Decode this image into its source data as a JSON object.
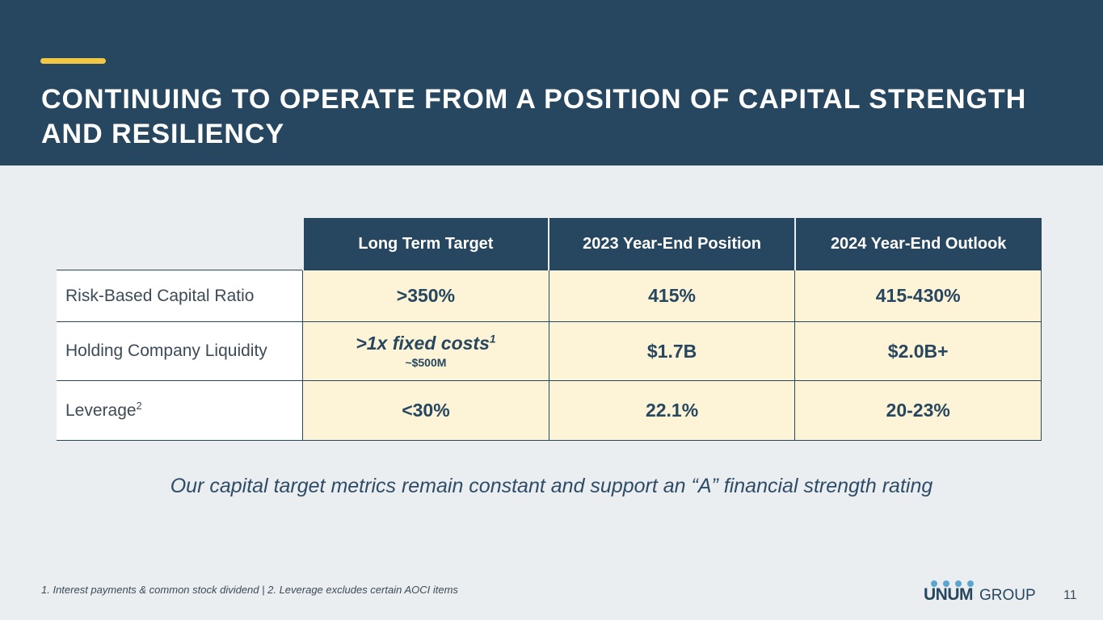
{
  "header": {
    "title": "CONTINUING TO OPERATE FROM A POSITION OF CAPITAL STRENGTH AND RESILIENCY",
    "background_color": "#26475f",
    "accent_color": "#f2c744"
  },
  "table": {
    "headers": [
      "Long Term Target",
      "2023 Year-End Position",
      "2024 Year-End Outlook"
    ],
    "rows": [
      {
        "label": "Risk-Based Capital Ratio",
        "label_sup": "",
        "target": ">350%",
        "target_sup": "",
        "target_sub": "",
        "ye2023": "415%",
        "ye2024": "415-430%"
      },
      {
        "label": "Holding Company Liquidity",
        "label_sup": "",
        "target": ">1x fixed costs",
        "target_sup": "1",
        "target_sub": "~$500M",
        "ye2023": "$1.7B",
        "ye2024": "$2.0B+"
      },
      {
        "label": "Leverage",
        "label_sup": "2",
        "target": "<30%",
        "target_sup": "",
        "target_sub": "",
        "ye2023": "22.1%",
        "ye2024": "20-23%"
      }
    ],
    "highlight_color": "#fdf3d7"
  },
  "tagline": "Our capital target metrics remain constant and support an “A” financial strength rating",
  "footnote": "1. Interest payments & common stock dividend  |  2. Leverage excludes certain AOCI items",
  "logo": {
    "primary": "UNUM",
    "secondary": "GROUP"
  },
  "page_number": "11"
}
